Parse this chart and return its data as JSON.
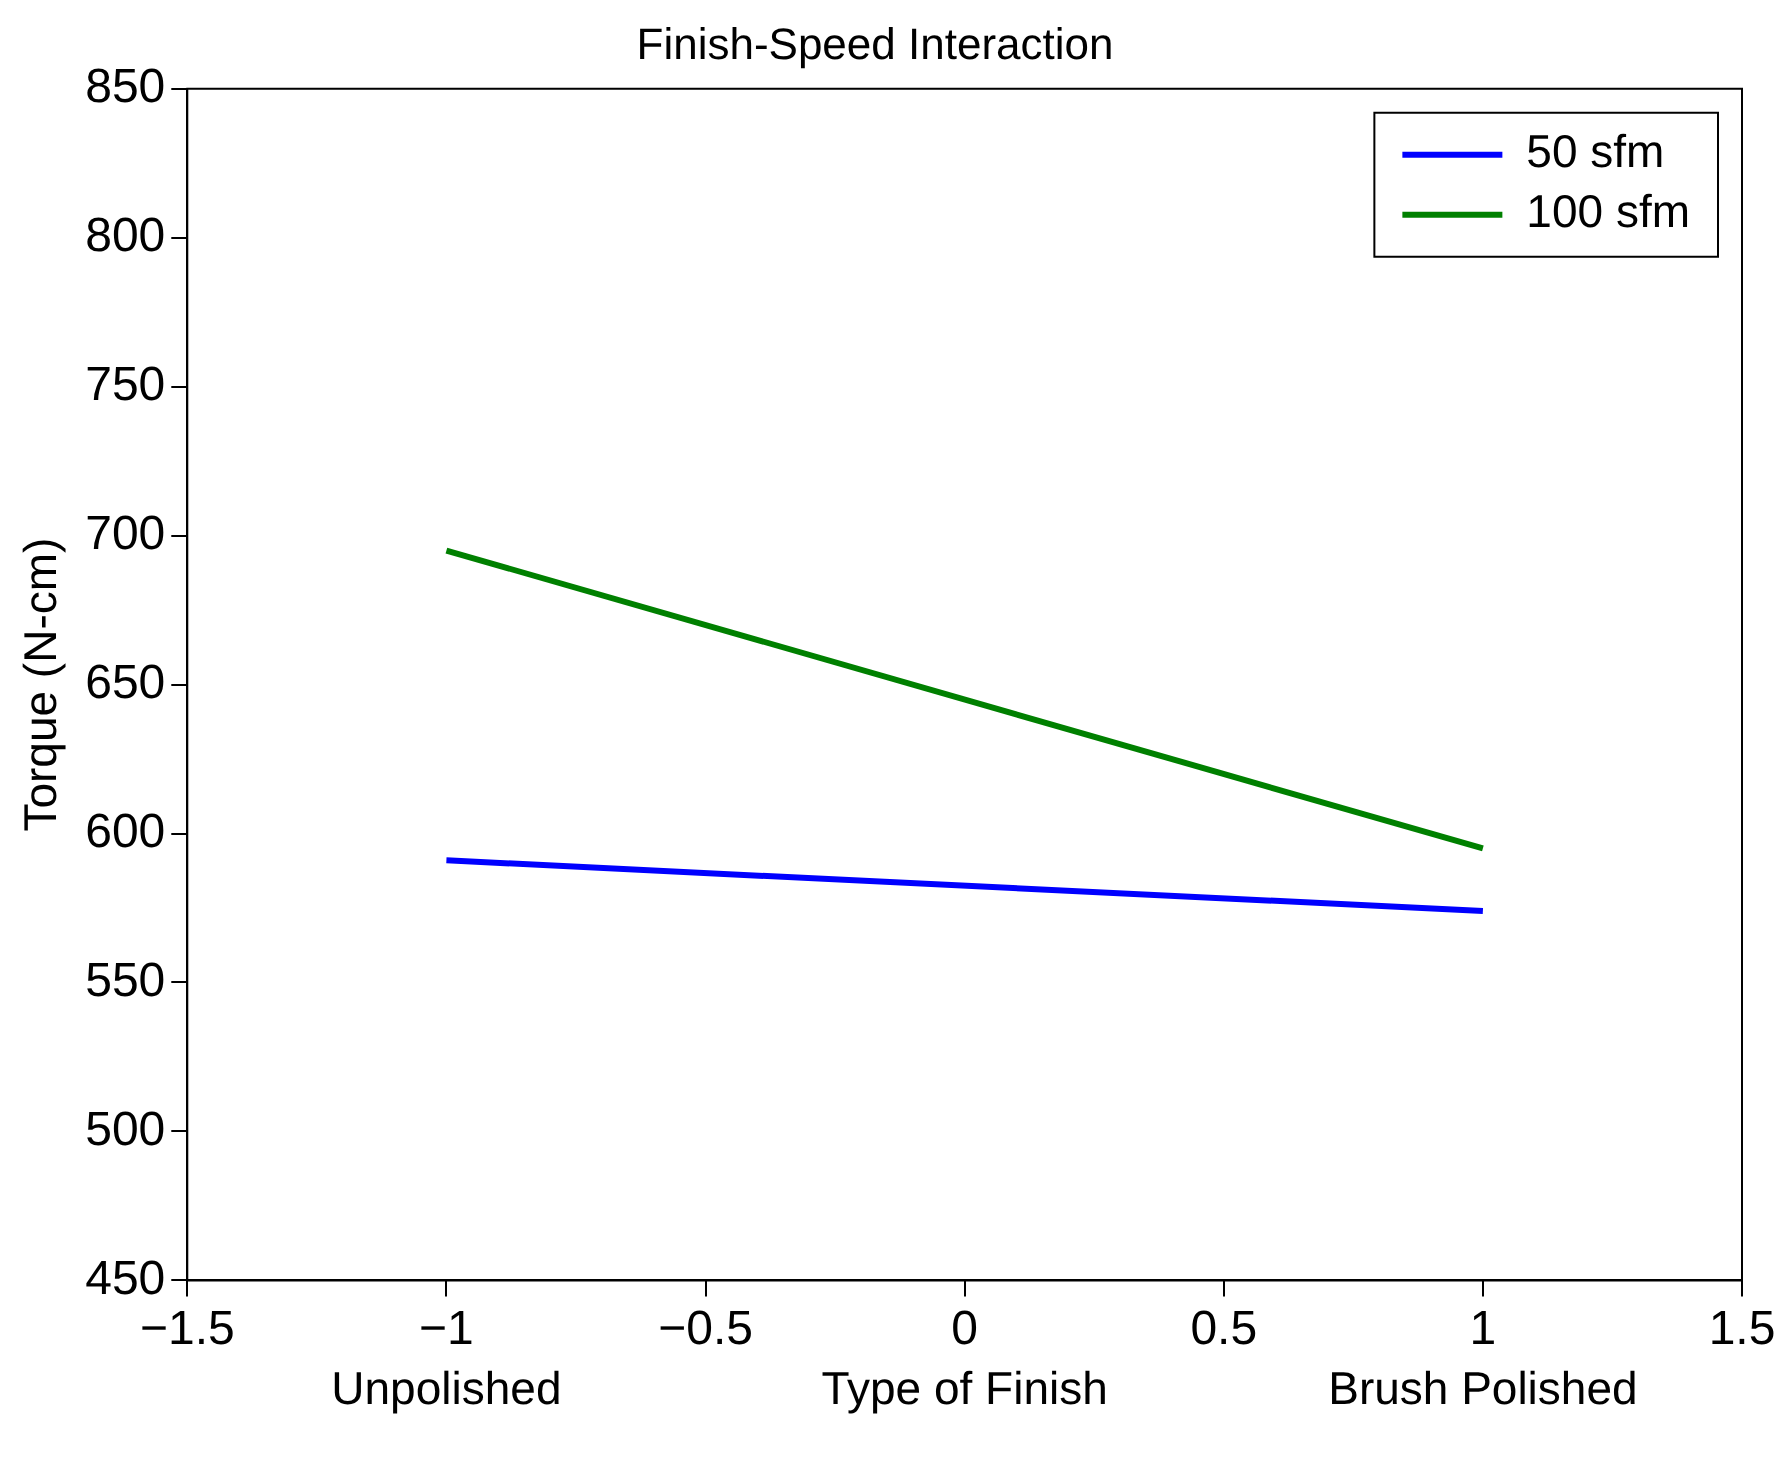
{
  "chart_data": {
    "type": "line",
    "title": "Finish-Speed Interaction",
    "xlabel": "Type of Finish",
    "ylabel": "Torque (N-cm)",
    "x": [
      -1,
      1
    ],
    "series": [
      {
        "name": "50 sfm",
        "color": "#0000ff",
        "values": [
          591,
          574
        ]
      },
      {
        "name": "100 sfm",
        "color": "#008000",
        "values": [
          695,
          595
        ]
      }
    ],
    "xlim": [
      -1.5,
      1.5
    ],
    "xticks": [
      -1.5,
      -1,
      -0.5,
      0,
      0.5,
      1,
      1.5
    ],
    "ylim": [
      450,
      850
    ],
    "yticks": [
      450,
      500,
      550,
      600,
      650,
      700,
      750,
      800,
      850
    ],
    "annotations": [
      "Unpolished",
      "Brush Polished"
    ],
    "grid": false,
    "legend": "top right",
    "marker": "none",
    "line_style": "solid"
  }
}
